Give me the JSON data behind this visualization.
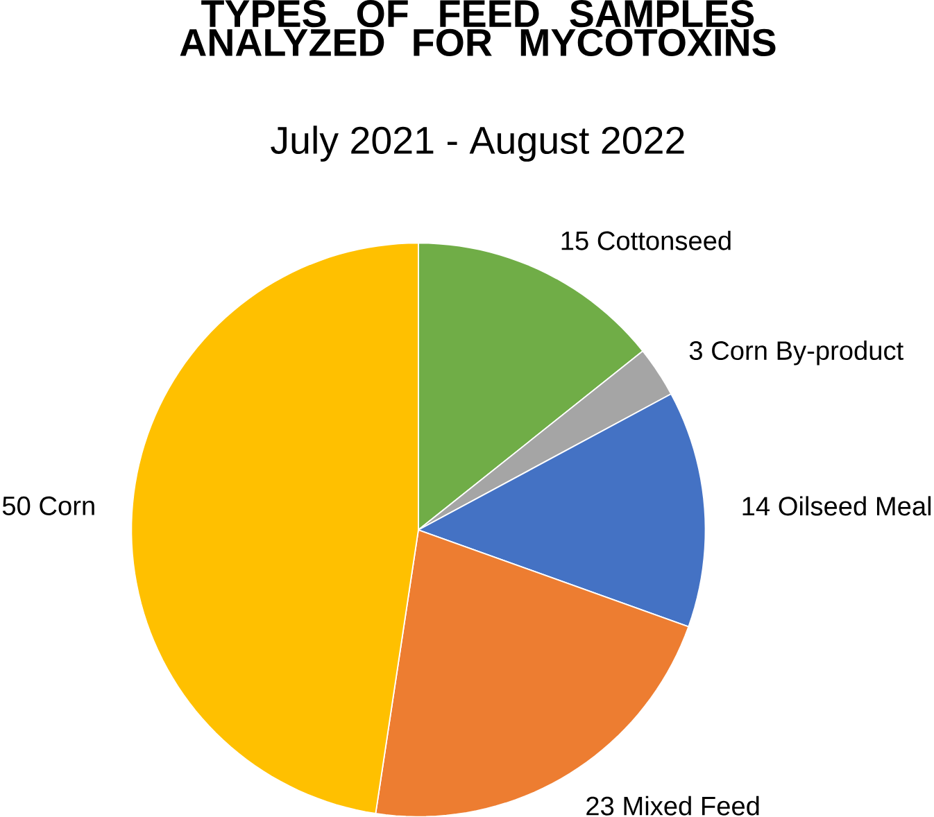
{
  "chart_data": {
    "type": "pie",
    "title": "TYPES OF FEED SAMPLES ANALYZED FOR MYCOTOXINS",
    "subtitle": "July 2021 - August 2022",
    "categories": [
      "Cottonseed",
      "Corn By-product",
      "Oilseed Meal",
      "Mixed Feed",
      "Corn"
    ],
    "values": [
      15,
      3,
      14,
      23,
      50
    ],
    "colors": [
      "#70ad47",
      "#a5a5a5",
      "#4472c4",
      "#ed7d31",
      "#ffc000"
    ],
    "value_labels": [
      "15",
      "3",
      "14",
      "23",
      "50"
    ]
  }
}
